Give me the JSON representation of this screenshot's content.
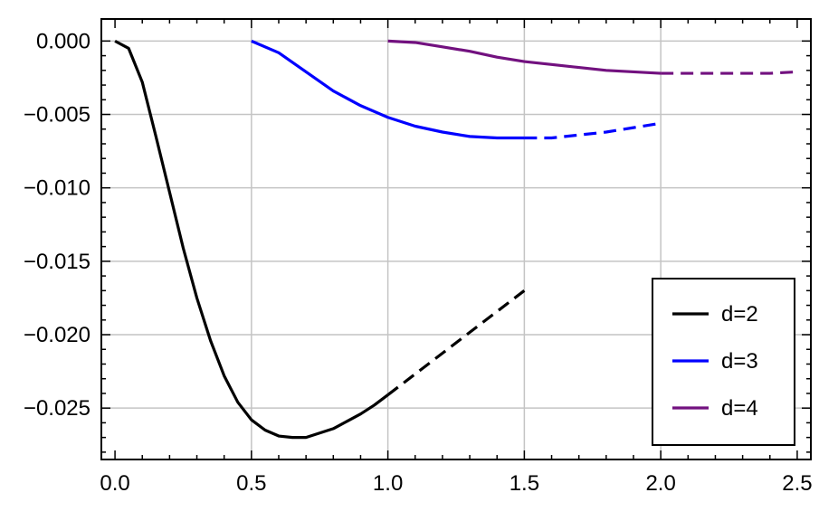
{
  "chart_data": {
    "type": "line",
    "title": "",
    "xlabel": "",
    "ylabel": "",
    "xlim": [
      -0.05,
      2.55
    ],
    "ylim": [
      -0.0285,
      0.0015
    ],
    "grid": true,
    "grid_x": [
      0.5,
      1.0,
      1.5,
      2.0
    ],
    "grid_y": [
      0.0,
      -0.005,
      -0.01,
      -0.015,
      -0.02,
      -0.025
    ],
    "x_ticks": [
      0.0,
      0.5,
      1.0,
      1.5,
      2.0,
      2.5
    ],
    "x_tick_labels": [
      "0.0",
      "0.5",
      "1.0",
      "1.5",
      "2.0",
      "2.5"
    ],
    "y_ticks": [
      0.0,
      -0.005,
      -0.01,
      -0.015,
      -0.02,
      -0.025
    ],
    "y_tick_labels": [
      "0.000",
      "−0.005",
      "−0.010",
      "−0.015",
      "−0.020",
      "−0.025"
    ],
    "legend_position": "bottom-right",
    "series": [
      {
        "name": "d=2",
        "color": "#000000",
        "solid": {
          "x": [
            0.0,
            0.05,
            0.1,
            0.15,
            0.2,
            0.25,
            0.3,
            0.35,
            0.4,
            0.45,
            0.5,
            0.55,
            0.6,
            0.65,
            0.7,
            0.75,
            0.8,
            0.85,
            0.9,
            0.95,
            1.0
          ],
          "y": [
            0.0,
            -0.0005,
            -0.0028,
            -0.0065,
            -0.0103,
            -0.0141,
            -0.0175,
            -0.0204,
            -0.0228,
            -0.0246,
            -0.0258,
            -0.0265,
            -0.0269,
            -0.027,
            -0.027,
            -0.0267,
            -0.0264,
            -0.0259,
            -0.0254,
            -0.0248,
            -0.0241
          ]
        },
        "dashed": {
          "x": [
            1.0,
            1.5
          ],
          "y": [
            -0.0241,
            -0.017
          ]
        }
      },
      {
        "name": "d=3",
        "color": "#0000ff",
        "solid": {
          "x": [
            0.5,
            0.6,
            0.7,
            0.8,
            0.9,
            1.0,
            1.1,
            1.2,
            1.3,
            1.4,
            1.5
          ],
          "y": [
            0.0,
            -0.0008,
            -0.0021,
            -0.0034,
            -0.0044,
            -0.0052,
            -0.0058,
            -0.0062,
            -0.0065,
            -0.0066,
            -0.0066
          ]
        },
        "dashed": {
          "x": [
            1.5,
            1.6,
            1.7,
            1.8,
            1.9,
            2.0
          ],
          "y": [
            -0.0066,
            -0.0066,
            -0.0064,
            -0.0062,
            -0.0059,
            -0.0056
          ]
        }
      },
      {
        "name": "d=4",
        "color": "#72117f",
        "solid": {
          "x": [
            1.0,
            1.1,
            1.2,
            1.3,
            1.4,
            1.5,
            1.6,
            1.7,
            1.8,
            1.9,
            2.0
          ],
          "y": [
            0.0,
            -0.0001,
            -0.0004,
            -0.0007,
            -0.0011,
            -0.0014,
            -0.0016,
            -0.0018,
            -0.002,
            -0.0021,
            -0.0022
          ]
        },
        "dashed": {
          "x": [
            2.0,
            2.1,
            2.2,
            2.3,
            2.4,
            2.5
          ],
          "y": [
            -0.0022,
            -0.0022,
            -0.0022,
            -0.0022,
            -0.0022,
            -0.0021
          ]
        }
      }
    ]
  }
}
